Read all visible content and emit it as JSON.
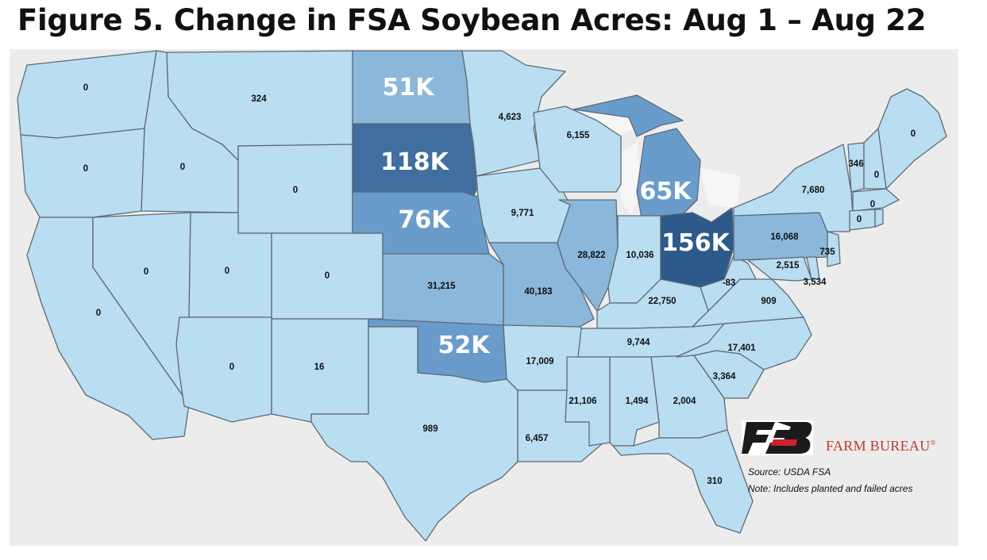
{
  "title": "Figure 5. Change in FSA Soybean Acres: Aug 1 – Aug 22",
  "legend_colors": {
    "background": "#ececec",
    "low": "#b9ddf1",
    "mid": "#8bb7db",
    "high": "#6a9ccb",
    "very_high": "#3f6e9f",
    "highest": "#2d5a8a"
  },
  "states": [
    {
      "id": "WA",
      "label": "0"
    },
    {
      "id": "OR",
      "label": "0"
    },
    {
      "id": "CA",
      "label": "0"
    },
    {
      "id": "ID",
      "label": "0"
    },
    {
      "id": "NV",
      "label": "0"
    },
    {
      "id": "MT",
      "label": "324"
    },
    {
      "id": "WY",
      "label": "0"
    },
    {
      "id": "UT",
      "label": "0"
    },
    {
      "id": "CO",
      "label": "0"
    },
    {
      "id": "AZ",
      "label": "0"
    },
    {
      "id": "NM",
      "label": "16"
    },
    {
      "id": "ND",
      "label": "51K"
    },
    {
      "id": "SD",
      "label": "118K"
    },
    {
      "id": "NE",
      "label": "76K"
    },
    {
      "id": "KS",
      "label": "31,215"
    },
    {
      "id": "OK",
      "label": "52K"
    },
    {
      "id": "TX",
      "label": "989"
    },
    {
      "id": "MN",
      "label": "4,623"
    },
    {
      "id": "IA",
      "label": "9,771"
    },
    {
      "id": "MO",
      "label": "40,183"
    },
    {
      "id": "AR",
      "label": "17,009"
    },
    {
      "id": "LA",
      "label": "6,457"
    },
    {
      "id": "WI",
      "label": "6,155"
    },
    {
      "id": "IL",
      "label": "28,822"
    },
    {
      "id": "MI",
      "label": "65K"
    },
    {
      "id": "IN",
      "label": "10,036"
    },
    {
      "id": "OH",
      "label": "156K"
    },
    {
      "id": "KY",
      "label": "22,750"
    },
    {
      "id": "TN",
      "label": "9,744"
    },
    {
      "id": "MS",
      "label": "21,106"
    },
    {
      "id": "AL",
      "label": "1,494"
    },
    {
      "id": "GA",
      "label": "2,004"
    },
    {
      "id": "FL",
      "label": "310"
    },
    {
      "id": "SC",
      "label": "3,364"
    },
    {
      "id": "NC",
      "label": "17,401"
    },
    {
      "id": "VA",
      "label": "909"
    },
    {
      "id": "WV",
      "label": "-83"
    },
    {
      "id": "PA",
      "label": "16,068"
    },
    {
      "id": "NY",
      "label": "7,680"
    },
    {
      "id": "MD",
      "label": "2,515"
    },
    {
      "id": "DE",
      "label": "3,534"
    },
    {
      "id": "NJ",
      "label": "735"
    },
    {
      "id": "VT",
      "label": "346"
    },
    {
      "id": "NH",
      "label": "0"
    },
    {
      "id": "ME",
      "label": "0"
    },
    {
      "id": "MA",
      "label": "0"
    },
    {
      "id": "CT",
      "label": "0"
    }
  ],
  "logo": {
    "text": "FARM BUREAU",
    "mark": "FB",
    "registered": "®"
  },
  "source": "Source:  USDA FSA",
  "note": "Note: Includes planted and failed acres"
}
